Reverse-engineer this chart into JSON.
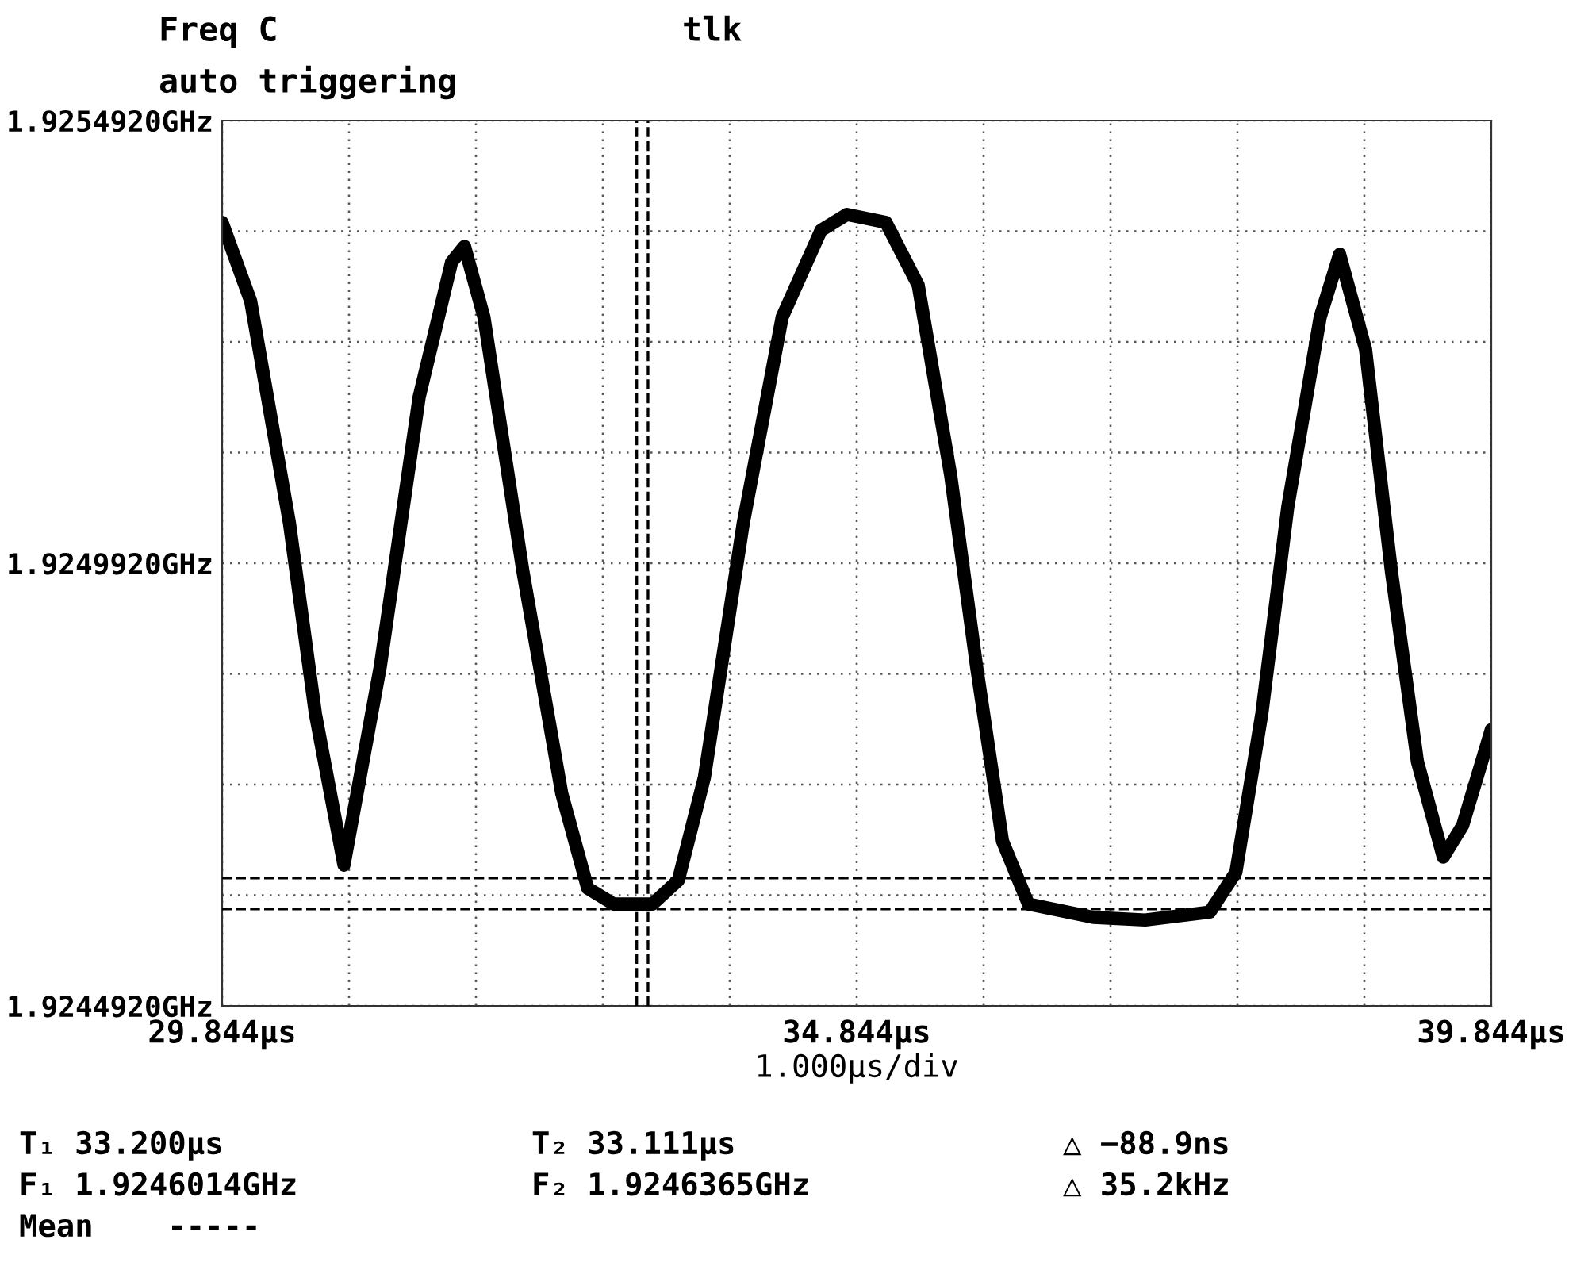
{
  "chart_data": {
    "type": "line",
    "title": "Freq C",
    "subtitle": "auto triggering",
    "xlabel": "1.000µs/div",
    "annotations": [
      "tlk",
      "T₁ 33.200µs",
      "T₂ 33.111µs",
      "△ −88.9ns",
      "F₁ 1.9246014GHz",
      "F₂ 1.9246365GHz",
      "△ 35.2kHz",
      "Mean    -----"
    ],
    "x": [
      29.844,
      30.069,
      30.375,
      30.579,
      30.804,
      31.09,
      31.397,
      31.652,
      31.754,
      31.907,
      32.214,
      32.52,
      32.724,
      32.929,
      33.235,
      33.439,
      33.644,
      33.95,
      34.257,
      34.563,
      34.767,
      35.074,
      35.329,
      35.585,
      35.789,
      35.993,
      36.197,
      36.708,
      37.117,
      37.627,
      37.832,
      38.036,
      38.24,
      38.496,
      38.649,
      38.853,
      39.057,
      39.262,
      39.466,
      39.619,
      39.844
    ],
    "series": [
      {
        "color": "#000000",
        "values": [
          1.925377,
          1.925288,
          1.925037,
          1.924822,
          1.924651,
          1.924875,
          1.92518,
          1.925332,
          1.92535,
          1.92527,
          1.924983,
          1.924732,
          1.924625,
          1.924607,
          1.924607,
          1.924634,
          1.92475,
          1.925037,
          1.92527,
          1.925368,
          1.925386,
          1.925377,
          1.925306,
          1.925091,
          1.924875,
          1.924678,
          1.924607,
          1.924592,
          1.924589,
          1.924598,
          1.924643,
          1.924822,
          1.925055,
          1.92527,
          1.925341,
          1.925234,
          1.924983,
          1.924768,
          1.92466,
          1.924696,
          1.924804
        ]
      }
    ],
    "xlim": [
      29.844,
      39.844
    ],
    "xticks": [
      {
        "value": 29.844,
        "label": "29.844µs"
      },
      {
        "value": 30.844,
        "label": null
      },
      {
        "value": 31.844,
        "label": null
      },
      {
        "value": 32.844,
        "label": null
      },
      {
        "value": 33.844,
        "label": null
      },
      {
        "value": 34.844,
        "label": "34.844µs"
      },
      {
        "value": 35.844,
        "label": null
      },
      {
        "value": 36.844,
        "label": null
      },
      {
        "value": 37.844,
        "label": null
      },
      {
        "value": 38.844,
        "label": null
      },
      {
        "value": 39.844,
        "label": "39.844µs"
      }
    ],
    "ylim": [
      1.924492,
      1.925492
    ],
    "yticks": [
      {
        "value": 1.924492,
        "label": "1.9244920GHz"
      },
      {
        "value": 1.924617,
        "label": null
      },
      {
        "value": 1.924742,
        "label": null
      },
      {
        "value": 1.924867,
        "label": null
      },
      {
        "value": 1.924992,
        "label": "1.9249920GHz"
      },
      {
        "value": 1.925117,
        "label": null
      },
      {
        "value": 1.925242,
        "label": null
      },
      {
        "value": 1.925367,
        "label": null
      },
      {
        "value": 1.925492,
        "label": "1.9254920GHz"
      }
    ],
    "ref_lines": [
      {
        "axis": "x",
        "value": 33.2,
        "line_style": "dashed",
        "color": "#000000"
      },
      {
        "axis": "x",
        "value": 33.111,
        "line_style": "dashed",
        "color": "#000000"
      },
      {
        "axis": "y",
        "value": 1.9246014,
        "line_style": "dashed",
        "color": "#000000"
      },
      {
        "axis": "y",
        "value": 1.9246365,
        "line_style": "dashed",
        "color": "#000000"
      }
    ],
    "grid": true,
    "line_style": "solid"
  }
}
